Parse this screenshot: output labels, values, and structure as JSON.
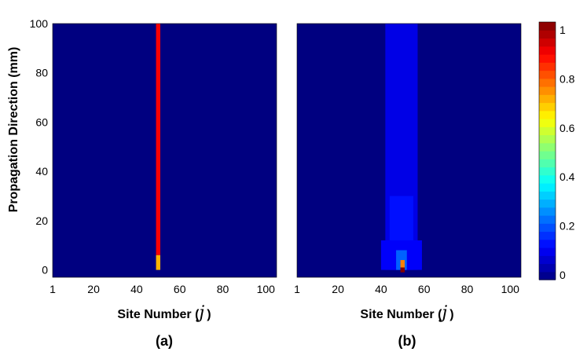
{
  "chart_data": [
    {
      "type": "heatmap",
      "panel_label": "(a)",
      "xlabel": "Site Number (",
      "xlabel_var": "j",
      "xlabel_close": ")",
      "ylabel": "Propagation Direction (mm)",
      "xlim": [
        1,
        105
      ],
      "ylim": [
        -3,
        100
      ],
      "xticks": [
        1,
        20,
        40,
        60,
        80,
        100
      ],
      "yticks": [
        0,
        20,
        40,
        60,
        80,
        100
      ],
      "background_intensity": 0.0,
      "features": [
        {
          "kind": "column",
          "x": 50,
          "y_from": 6,
          "y_to": 100,
          "intensity": 0.88
        },
        {
          "kind": "column",
          "x": 50,
          "y_from": 0,
          "y_to": 6,
          "intensity": 0.7
        }
      ]
    },
    {
      "type": "heatmap",
      "panel_label": "(b)",
      "xlabel": "Site Number (",
      "xlabel_var": "j",
      "xlabel_close": ")",
      "ylabel": "",
      "xlim": [
        1,
        105
      ],
      "ylim": [
        -3,
        100
      ],
      "xticks": [
        1,
        20,
        40,
        60,
        80,
        100
      ],
      "yticks": [
        0,
        20,
        40,
        60,
        80,
        100
      ],
      "background_intensity": 0.0,
      "features": [
        {
          "kind": "band",
          "x_from": 42,
          "x_to": 57,
          "y_from": 0,
          "y_to": 100,
          "intensity": 0.1
        },
        {
          "kind": "band",
          "x_from": 44,
          "x_to": 55,
          "y_from": 0,
          "y_to": 30,
          "intensity": 0.14
        },
        {
          "kind": "band",
          "x_from": 40,
          "x_to": 59,
          "y_from": 0,
          "y_to": 12,
          "intensity": 0.12
        },
        {
          "kind": "band",
          "x_from": 47,
          "x_to": 52,
          "y_from": 0,
          "y_to": 8,
          "intensity": 0.22
        },
        {
          "kind": "column",
          "x": 50,
          "y_from": -1,
          "y_to": 1,
          "intensity": 1.0
        },
        {
          "kind": "column",
          "x": 50,
          "y_from": 1,
          "y_to": 4,
          "intensity": 0.75
        }
      ]
    }
  ],
  "colorbar": {
    "colormap": "jet",
    "range": [
      0,
      1
    ],
    "ticks": [
      "0",
      "0.2",
      "0.4",
      "0.6",
      "0.8",
      "1"
    ],
    "tick_values": [
      0,
      0.2,
      0.4,
      0.6,
      0.8,
      1
    ],
    "levels": 32
  }
}
